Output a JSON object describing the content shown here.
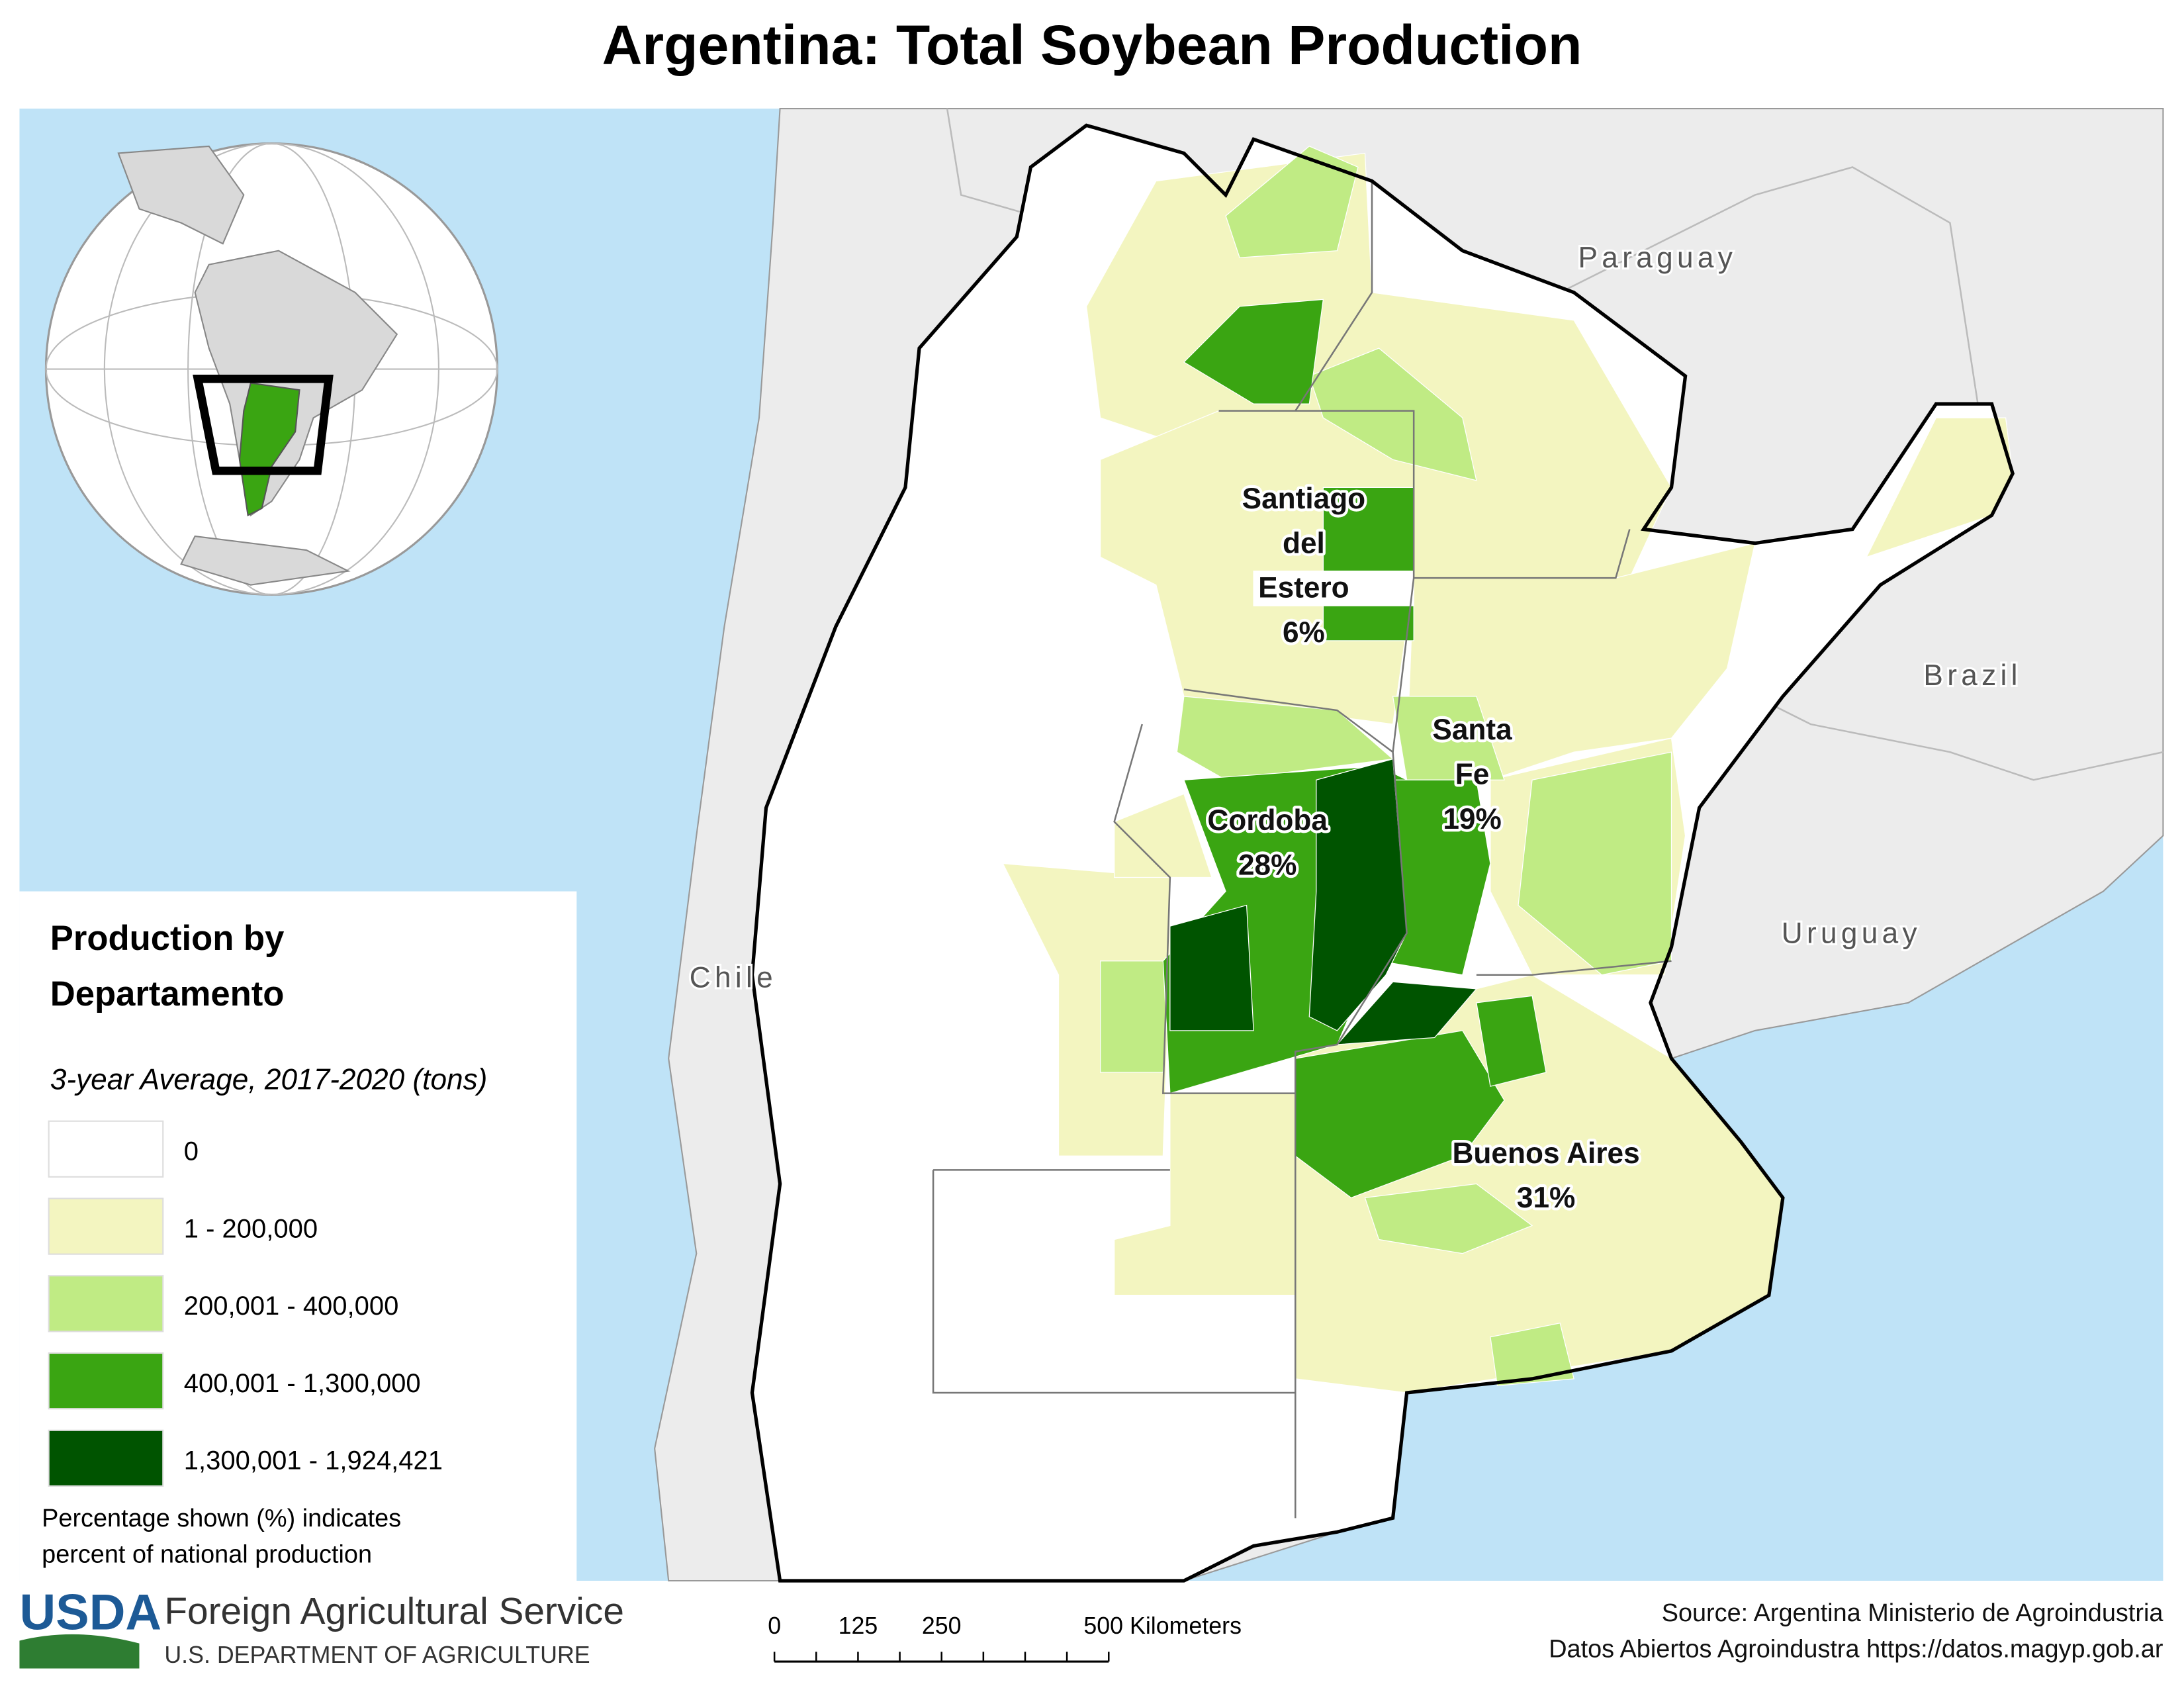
{
  "title": "Argentina: Total Soybean Production",
  "legend": {
    "title_lines": [
      "Production by",
      "Departamento"
    ],
    "subtitle": "3-year Average, 2017-2020 (tons)",
    "items": [
      {
        "label": "0",
        "color": "#ffffff"
      },
      {
        "label": "1 - 200,000",
        "color": "#f3f5c0"
      },
      {
        "label": "200,001 - 400,000",
        "color": "#c0eb84"
      },
      {
        "label": "400,001 - 1,300,000",
        "color": "#3aa512"
      },
      {
        "label": "1,300,001 - 1,924,421",
        "color": "#005400"
      }
    ],
    "note_lines": [
      "Percentage shown (%) indicates",
      "percent of national production"
    ]
  },
  "provinces": [
    {
      "name_lines": [
        "Santiago",
        "del",
        "Estero"
      ],
      "share": "6%"
    },
    {
      "name_lines": [
        "Santa",
        "Fe"
      ],
      "share": "19%"
    },
    {
      "name_lines": [
        "Cordoba"
      ],
      "share": "28%"
    },
    {
      "name_lines": [
        "Buenos Aires"
      ],
      "share": "31%"
    }
  ],
  "countries": [
    "Paraguay",
    "Brazil",
    "Uruguay",
    "Chile"
  ],
  "scale_bar": {
    "ticks": [
      "0",
      "125",
      "250"
    ],
    "end_label": "500 Kilometers"
  },
  "footer": {
    "logo": "USDA",
    "agency": "Foreign Agricultural Service",
    "department": "U.S. DEPARTMENT OF AGRICULTURE",
    "source_lines": [
      "Source: Argentina Ministerio de Agroindustria",
      "Datos Abiertos Agroindustra https://datos.magyp.gob.ar"
    ]
  }
}
